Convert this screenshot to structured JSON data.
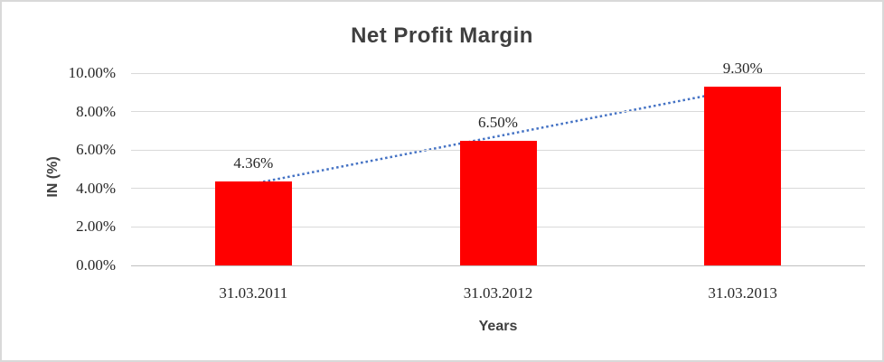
{
  "chart_data": {
    "type": "bar",
    "title": "Net Profit Margin",
    "xlabel": "Years",
    "ylabel": "IN (%)",
    "categories": [
      "31.03.2011",
      "31.03.2012",
      "31.03.2013"
    ],
    "values": [
      4.36,
      6.5,
      9.3
    ],
    "data_labels": [
      "4.36%",
      "6.50%",
      "9.30%"
    ],
    "yticks": [
      {
        "label": "0.00%",
        "value": 0
      },
      {
        "label": "2.00%",
        "value": 2
      },
      {
        "label": "4.00%",
        "value": 4
      },
      {
        "label": "6.00%",
        "value": 6
      },
      {
        "label": "8.00%",
        "value": 8
      },
      {
        "label": "10.00%",
        "value": 10
      }
    ],
    "ylim": [
      0,
      10
    ],
    "grid": true,
    "legend": "none",
    "trendline": {
      "type": "linear",
      "style": "dotted"
    }
  },
  "colors": {
    "bar": "#ff0000",
    "trendline": "#4472c4",
    "gridline": "#d9d9d9",
    "axis_line": "#bfbfbf",
    "title_text": "#3f3f3f",
    "tick_text": "#262626",
    "frame_border": "#d9d9d9"
  }
}
